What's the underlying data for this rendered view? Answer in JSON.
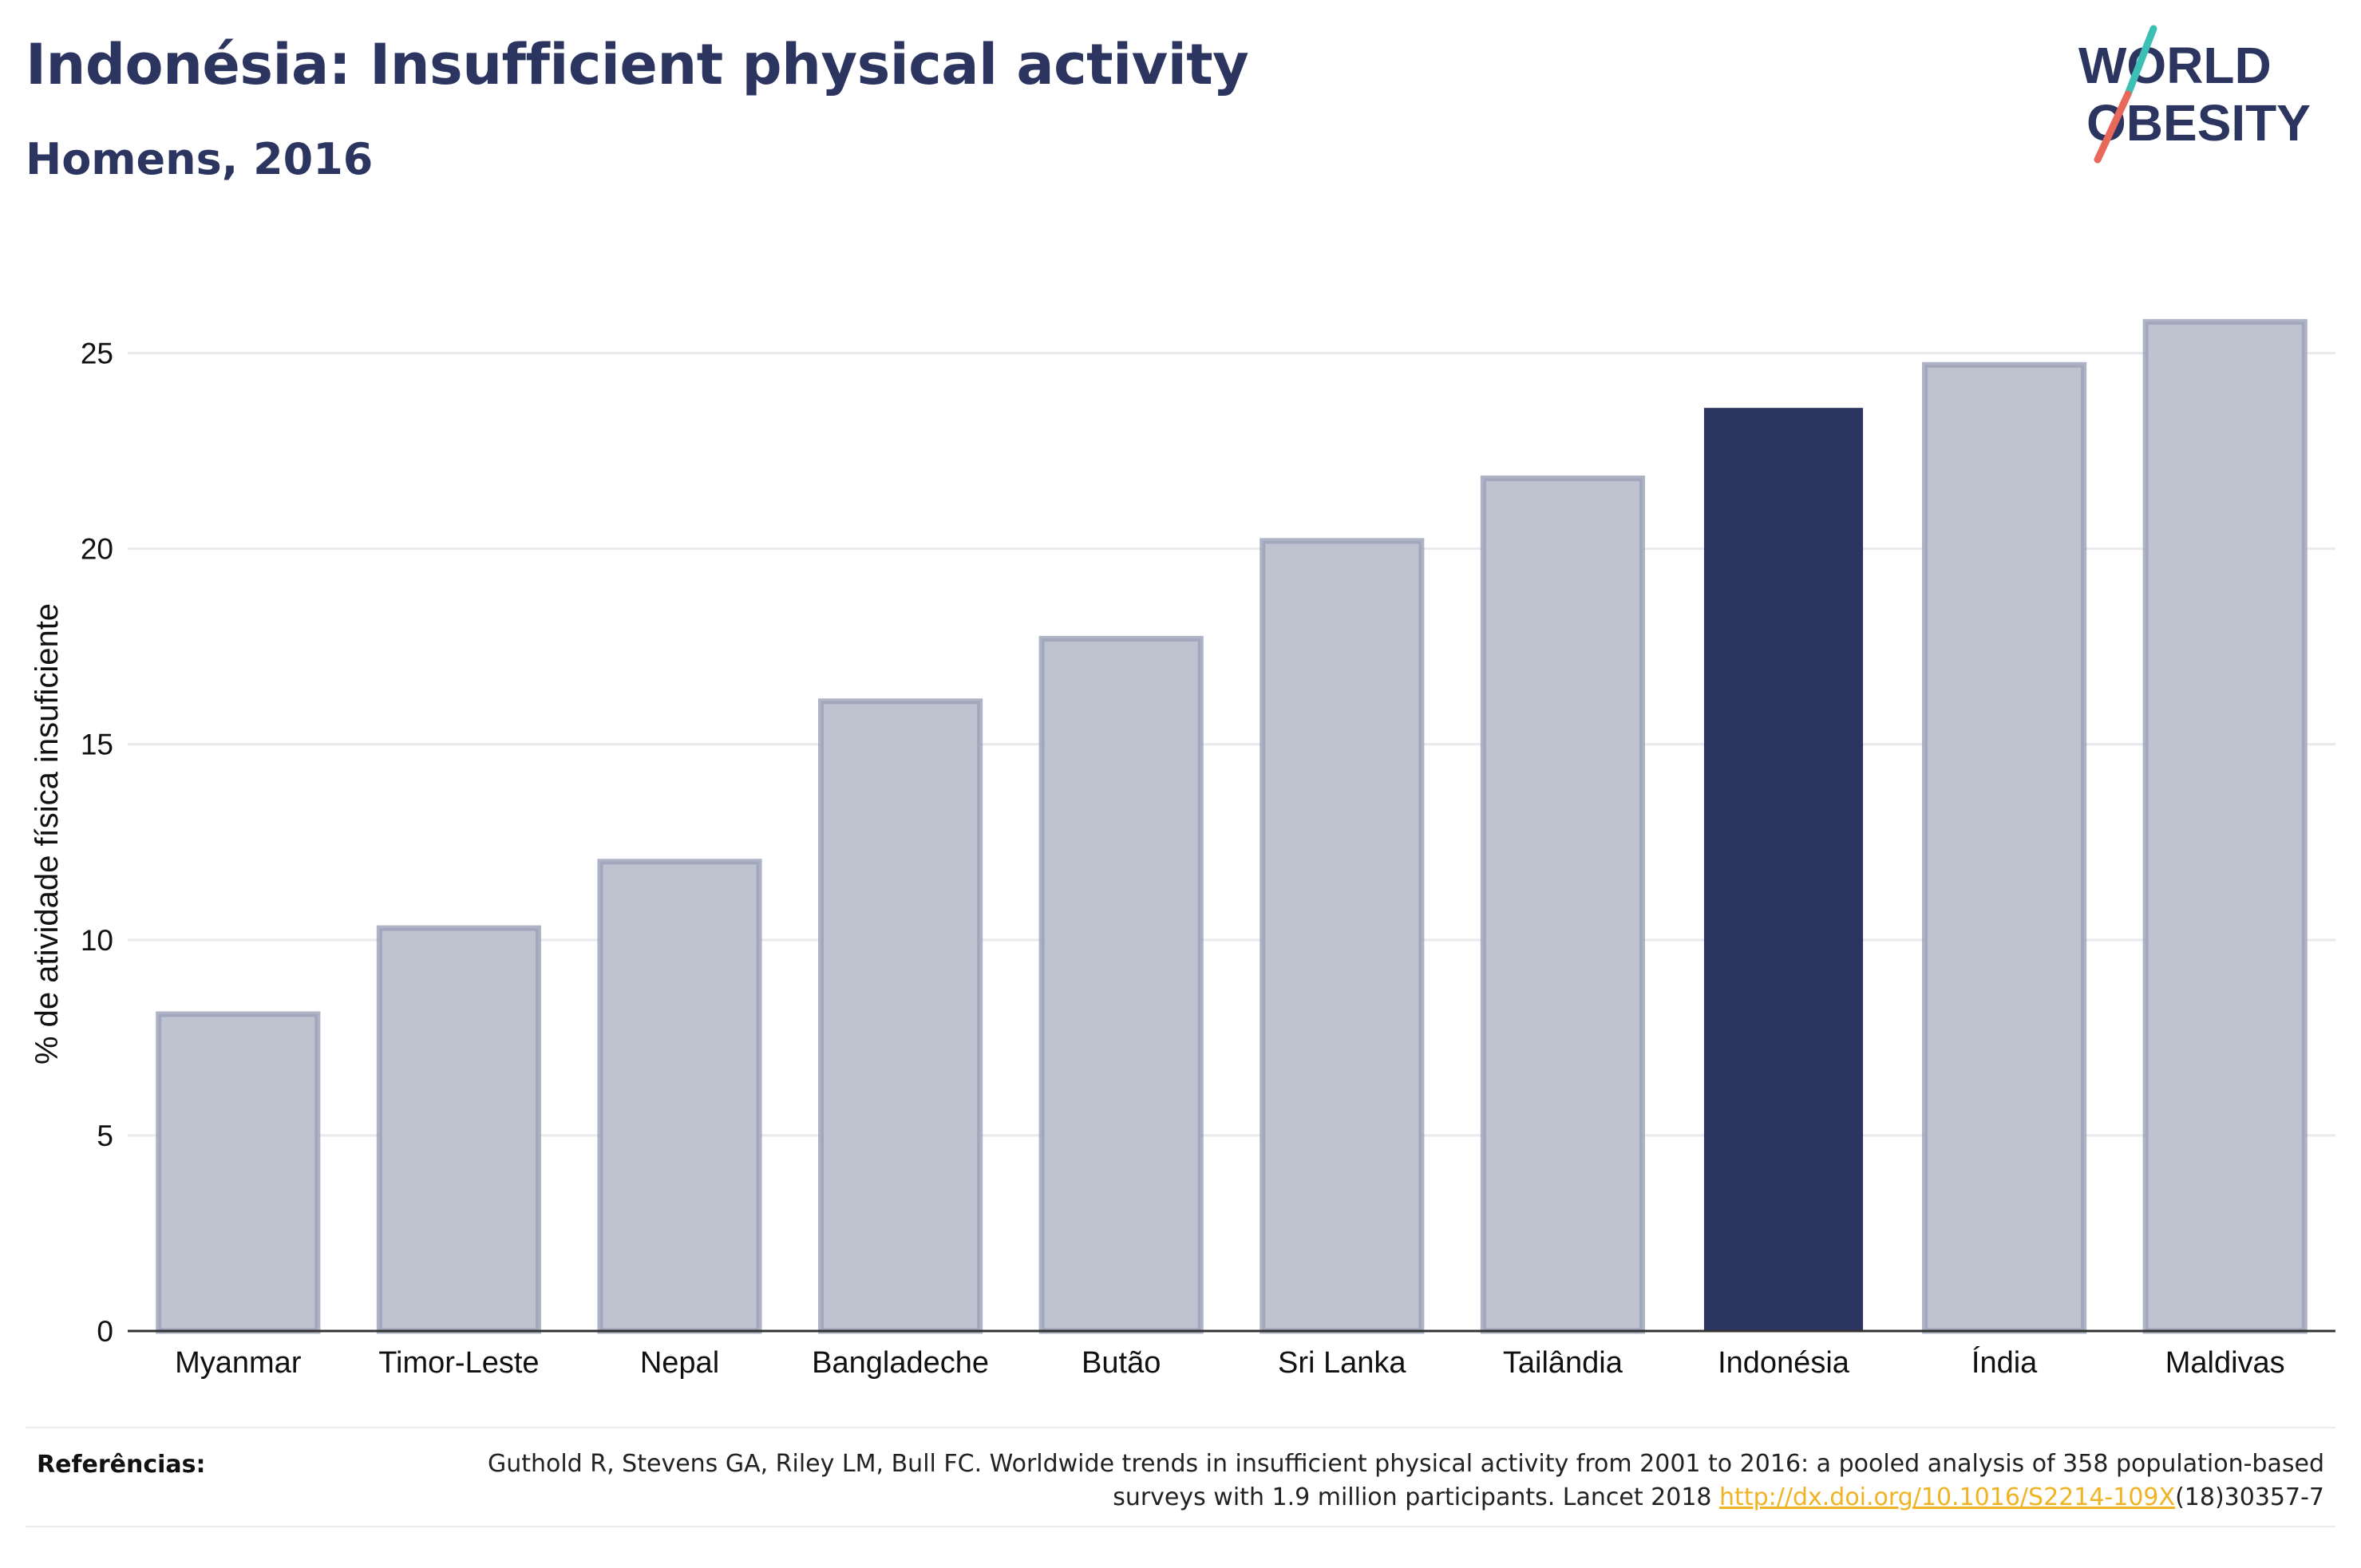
{
  "header": {
    "title": "Indonésia: Insufficient physical activity",
    "subtitle": "Homens, 2016"
  },
  "logo": {
    "line1": "WORLD",
    "line2": "OBESITY",
    "text_color": "#2b3560",
    "slash_color_top": "#3cbfb4",
    "slash_color_bottom": "#e8685a"
  },
  "chart_data": {
    "type": "bar",
    "categories": [
      "Myanmar",
      "Timor-Leste",
      "Nepal",
      "Bangladeche",
      "Butão",
      "Sri Lanka",
      "Tailândia",
      "Indonésia",
      "Índia",
      "Maldivas"
    ],
    "values": [
      8.1,
      10.3,
      12.0,
      16.1,
      17.7,
      20.2,
      21.8,
      23.6,
      24.7,
      25.8
    ],
    "highlight": "Indonésia",
    "ylabel": "% de atividade física insuficiente",
    "xlabel": "",
    "ylim": [
      0,
      27.5
    ],
    "yticks": [
      0,
      5,
      10,
      15,
      20,
      25
    ],
    "grid": true,
    "colors": {
      "bar": "#bfc2cf",
      "bar_border": "#9aa0b7",
      "highlight": "#2b3560",
      "grid": "#e9e9ee",
      "axis": "#333333"
    }
  },
  "references": {
    "label": "Referências:",
    "text_before": "Guthold R, Stevens GA, Riley LM, Bull FC. Worldwide trends in insufficient physical activity from 2001 to 2016: a pooled analysis of 358 population-based surveys with 1.9 million participants. Lancet 2018 ",
    "link_text": "http://dx.doi.org/10.1016/S2214-109X",
    "text_after": "(18)30357-7"
  }
}
